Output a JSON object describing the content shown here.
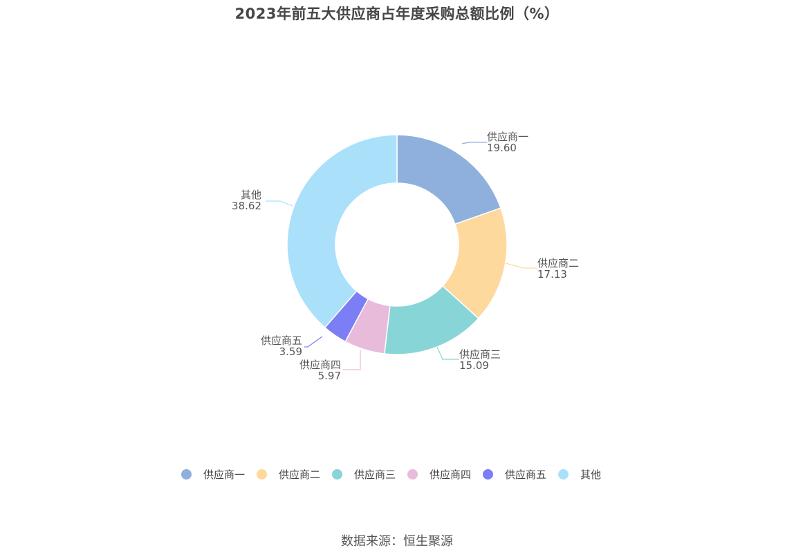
{
  "title": "2023年前五大供应商占年度采购总额比例（%）",
  "source": "数据来源：恒生聚源",
  "chart_data": {
    "type": "pie",
    "donut": true,
    "categories": [
      "供应商一",
      "供应商二",
      "供应商三",
      "供应商四",
      "供应商五",
      "其他"
    ],
    "values": [
      19.6,
      17.13,
      15.09,
      5.97,
      3.59,
      38.62
    ],
    "value_labels": [
      "19.60",
      "17.13",
      "15.09",
      "5.97",
      "3.59",
      "38.62"
    ],
    "colors": [
      "#8fb0dd",
      "#fed99e",
      "#88d5d8",
      "#e8bbdb",
      "#7b7ef5",
      "#abe0fa"
    ],
    "legend_position": "bottom",
    "title": "2023年前五大供应商占年度采购总额比例（%）"
  }
}
